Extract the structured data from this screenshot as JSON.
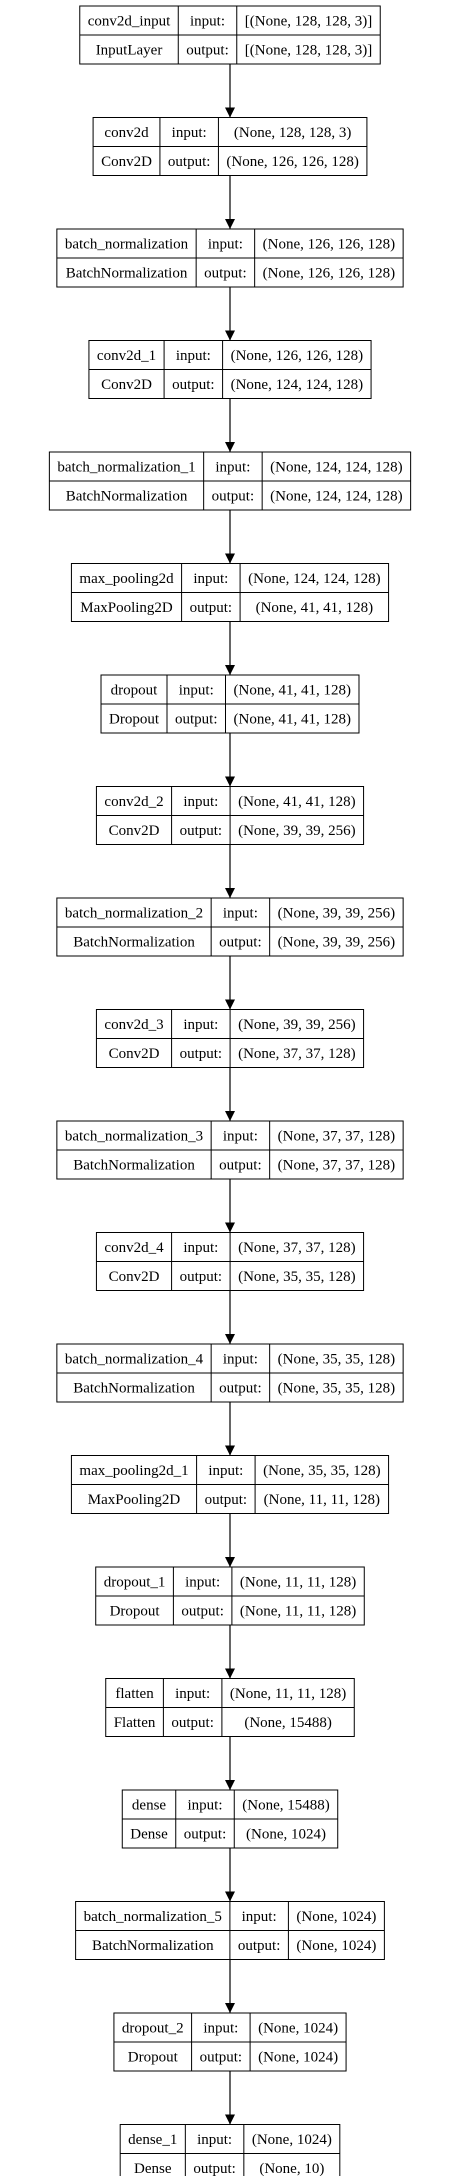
{
  "layers": [
    {
      "name": "conv2d_input",
      "type": "InputLayer",
      "input_label": "input:",
      "output_label": "output:",
      "input": "[(None, 128, 128, 3)]",
      "output": "[(None, 128, 128, 3)]"
    },
    {
      "name": "conv2d",
      "type": "Conv2D",
      "input_label": "input:",
      "output_label": "output:",
      "input": "(None, 128, 128, 3)",
      "output": "(None, 126, 126, 128)"
    },
    {
      "name": "batch_normalization",
      "type": "BatchNormalization",
      "input_label": "input:",
      "output_label": "output:",
      "input": "(None, 126, 126, 128)",
      "output": "(None, 126, 126, 128)"
    },
    {
      "name": "conv2d_1",
      "type": "Conv2D",
      "input_label": "input:",
      "output_label": "output:",
      "input": "(None, 126, 126, 128)",
      "output": "(None, 124, 124, 128)"
    },
    {
      "name": "batch_normalization_1",
      "type": "BatchNormalization",
      "input_label": "input:",
      "output_label": "output:",
      "input": "(None, 124, 124, 128)",
      "output": "(None, 124, 124, 128)"
    },
    {
      "name": "max_pooling2d",
      "type": "MaxPooling2D",
      "input_label": "input:",
      "output_label": "output:",
      "input": "(None, 124, 124, 128)",
      "output": "(None, 41, 41, 128)"
    },
    {
      "name": "dropout",
      "type": "Dropout",
      "input_label": "input:",
      "output_label": "output:",
      "input": "(None, 41, 41, 128)",
      "output": "(None, 41, 41, 128)"
    },
    {
      "name": "conv2d_2",
      "type": "Conv2D",
      "input_label": "input:",
      "output_label": "output:",
      "input": "(None, 41, 41, 128)",
      "output": "(None, 39, 39, 256)"
    },
    {
      "name": "batch_normalization_2",
      "type": "BatchNormalization",
      "input_label": "input:",
      "output_label": "output:",
      "input": "(None, 39, 39, 256)",
      "output": "(None, 39, 39, 256)"
    },
    {
      "name": "conv2d_3",
      "type": "Conv2D",
      "input_label": "input:",
      "output_label": "output:",
      "input": "(None, 39, 39, 256)",
      "output": "(None, 37, 37, 128)"
    },
    {
      "name": "batch_normalization_3",
      "type": "BatchNormalization",
      "input_label": "input:",
      "output_label": "output:",
      "input": "(None, 37, 37, 128)",
      "output": "(None, 37, 37, 128)"
    },
    {
      "name": "conv2d_4",
      "type": "Conv2D",
      "input_label": "input:",
      "output_label": "output:",
      "input": "(None, 37, 37, 128)",
      "output": "(None, 35, 35, 128)"
    },
    {
      "name": "batch_normalization_4",
      "type": "BatchNormalization",
      "input_label": "input:",
      "output_label": "output:",
      "input": "(None, 35, 35, 128)",
      "output": "(None, 35, 35, 128)"
    },
    {
      "name": "max_pooling2d_1",
      "type": "MaxPooling2D",
      "input_label": "input:",
      "output_label": "output:",
      "input": "(None, 35, 35, 128)",
      "output": "(None, 11, 11, 128)"
    },
    {
      "name": "dropout_1",
      "type": "Dropout",
      "input_label": "input:",
      "output_label": "output:",
      "input": "(None, 11, 11, 128)",
      "output": "(None, 11, 11, 128)"
    },
    {
      "name": "flatten",
      "type": "Flatten",
      "input_label": "input:",
      "output_label": "output:",
      "input": "(None, 11, 11, 128)",
      "output": "(None, 15488)"
    },
    {
      "name": "dense",
      "type": "Dense",
      "input_label": "input:",
      "output_label": "output:",
      "input": "(None, 15488)",
      "output": "(None, 1024)"
    },
    {
      "name": "batch_normalization_5",
      "type": "BatchNormalization",
      "input_label": "input:",
      "output_label": "output:",
      "input": "(None, 1024)",
      "output": "(None, 1024)"
    },
    {
      "name": "dropout_2",
      "type": "Dropout",
      "input_label": "input:",
      "output_label": "output:",
      "input": "(None, 1024)",
      "output": "(None, 1024)"
    },
    {
      "name": "dense_1",
      "type": "Dense",
      "input_label": "input:",
      "output_label": "output:",
      "input": "(None, 1024)",
      "output": "(None, 10)"
    }
  ]
}
